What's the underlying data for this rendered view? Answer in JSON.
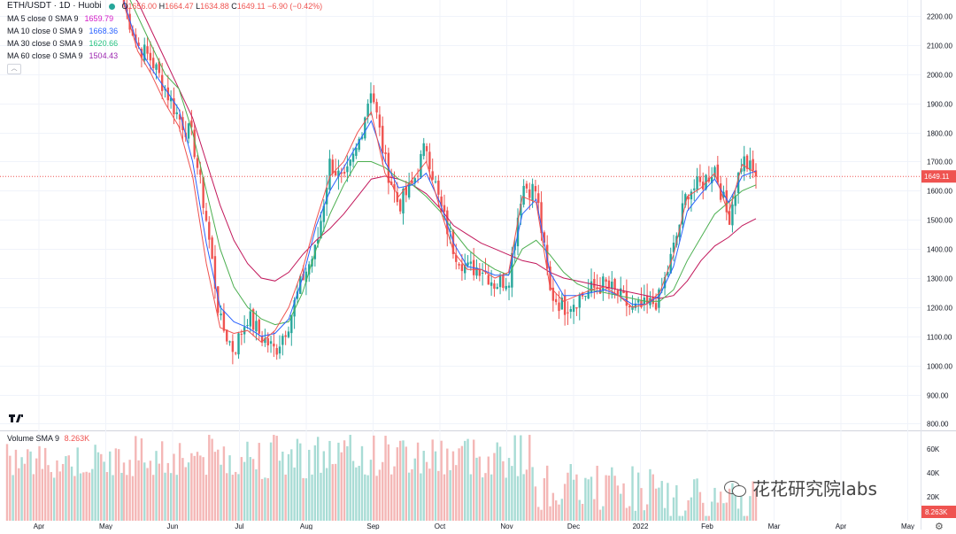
{
  "header": {
    "symbol": "ETH/USDT · 1D · Huobi",
    "ohlc": {
      "o_label": "O",
      "o": "1656.00",
      "h_label": "H",
      "h": "1664.47",
      "l_label": "L",
      "l": "1634.88",
      "c_label": "C",
      "c": "1649.11",
      "chg": "−6.90 (−0.42%)"
    },
    "collapse_icon": "chevron-up-icon"
  },
  "ma_legend": [
    {
      "label": "MA 5 close 0 SMA 9",
      "value": "1659.79",
      "color": "#d41ec8"
    },
    {
      "label": "MA 10 close 0 SMA 9",
      "value": "1668.36",
      "color": "#2962ff"
    },
    {
      "label": "MA 30 close 0 SMA 9",
      "value": "1620.66",
      "color": "#26c281"
    },
    {
      "label": "MA 60 close 0 SMA 9",
      "value": "1504.43",
      "color": "#9c27b0"
    }
  ],
  "volume_legend": {
    "label": "Volume SMA 9",
    "value": "8.263K"
  },
  "watermark": "花花研究院labs",
  "colors": {
    "up": "#26a69a",
    "down": "#ef5350",
    "ma5": "#ef5350",
    "ma10": "#2962ff",
    "ma30": "#4caf50",
    "ma60": "#c2185b",
    "grid": "#f0f3fa",
    "axis_text": "#131722"
  },
  "chart_data": [
    {
      "type": "candlestick",
      "title": "ETH/USDT · 1D · Huobi",
      "price_axis_ticks": [
        800,
        900,
        1000,
        1100,
        1200,
        1300,
        1400,
        1500,
        1600,
        1700,
        1800,
        1900,
        2000,
        2100,
        2200
      ],
      "price_axis_labels": [
        "800.00",
        "900.00",
        "1000.00",
        "1100.00",
        "1200.00",
        "1300.00",
        "1400.00",
        "1500.00",
        "1600.00",
        "1700.00",
        "1800.00",
        "1900.00",
        "2000.00",
        "2100.00",
        "2200.00"
      ],
      "ylim": [
        780,
        2255
      ],
      "last_price": 1649.11,
      "last_price_label": "1649.11",
      "time_axis_labels": [
        "Apr",
        "May",
        "Jun",
        "Jul",
        "Aug",
        "Sep",
        "Oct",
        "Nov",
        "Dec",
        "2022",
        "Feb",
        "Mar",
        "Apr",
        "May"
      ],
      "close_path": [
        2240,
        2100,
        2050,
        1950,
        1850,
        1780,
        1500,
        1150,
        1050,
        1170,
        1100,
        1050,
        1150,
        1300,
        1400,
        1700,
        1620,
        1750,
        1960,
        1700,
        1550,
        1620,
        1760,
        1550,
        1400,
        1330,
        1340,
        1280,
        1300,
        1620,
        1600,
        1250,
        1200,
        1230,
        1260,
        1280,
        1240,
        1190,
        1200,
        1230,
        1400,
        1600,
        1620,
        1680,
        1500,
        1710,
        1649
      ],
      "ma_paths": {
        "ma5": [
          2240,
          2080,
          2000,
          1900,
          1820,
          1650,
          1350,
          1130,
          1110,
          1120,
          1080,
          1120,
          1200,
          1330,
          1500,
          1650,
          1700,
          1800,
          1870,
          1660,
          1580,
          1640,
          1700,
          1540,
          1390,
          1330,
          1330,
          1300,
          1320,
          1580,
          1560,
          1270,
          1220,
          1240,
          1260,
          1270,
          1240,
          1200,
          1210,
          1250,
          1380,
          1580,
          1610,
          1660,
          1520,
          1690,
          1660
        ],
        "ma10": [
          2250,
          2100,
          2020,
          1950,
          1880,
          1700,
          1420,
          1200,
          1150,
          1130,
          1100,
          1110,
          1160,
          1300,
          1480,
          1600,
          1680,
          1760,
          1840,
          1700,
          1610,
          1620,
          1660,
          1560,
          1420,
          1340,
          1330,
          1310,
          1310,
          1520,
          1570,
          1320,
          1240,
          1240,
          1250,
          1260,
          1240,
          1210,
          1210,
          1240,
          1340,
          1530,
          1590,
          1640,
          1560,
          1650,
          1668
        ],
        "ma30": [
          2300,
          2200,
          2100,
          2000,
          1950,
          1800,
          1600,
          1400,
          1270,
          1200,
          1160,
          1140,
          1150,
          1250,
          1400,
          1520,
          1620,
          1700,
          1700,
          1680,
          1640,
          1620,
          1580,
          1530,
          1460,
          1400,
          1360,
          1330,
          1310,
          1400,
          1430,
          1380,
          1320,
          1280,
          1260,
          1250,
          1240,
          1230,
          1220,
          1220,
          1260,
          1360,
          1440,
          1520,
          1560,
          1600,
          1620
        ],
        "ma60": [
          2300,
          2250,
          2150,
          2050,
          1950,
          1850,
          1700,
          1550,
          1430,
          1350,
          1300,
          1290,
          1320,
          1380,
          1430,
          1470,
          1520,
          1580,
          1640,
          1650,
          1640,
          1620,
          1590,
          1540,
          1480,
          1450,
          1420,
          1400,
          1380,
          1360,
          1350,
          1320,
          1300,
          1290,
          1280,
          1270,
          1260,
          1250,
          1240,
          1230,
          1240,
          1290,
          1360,
          1410,
          1440,
          1480,
          1504
        ]
      }
    },
    {
      "type": "bar",
      "title": "Volume SMA 9",
      "volume_axis_labels": [
        "20K",
        "40K",
        "60K"
      ],
      "volume_axis_values": [
        20,
        40,
        60
      ],
      "ylim": [
        0,
        75
      ],
      "last_volume_label": "8.263K",
      "last_volume": 8.263
    }
  ]
}
